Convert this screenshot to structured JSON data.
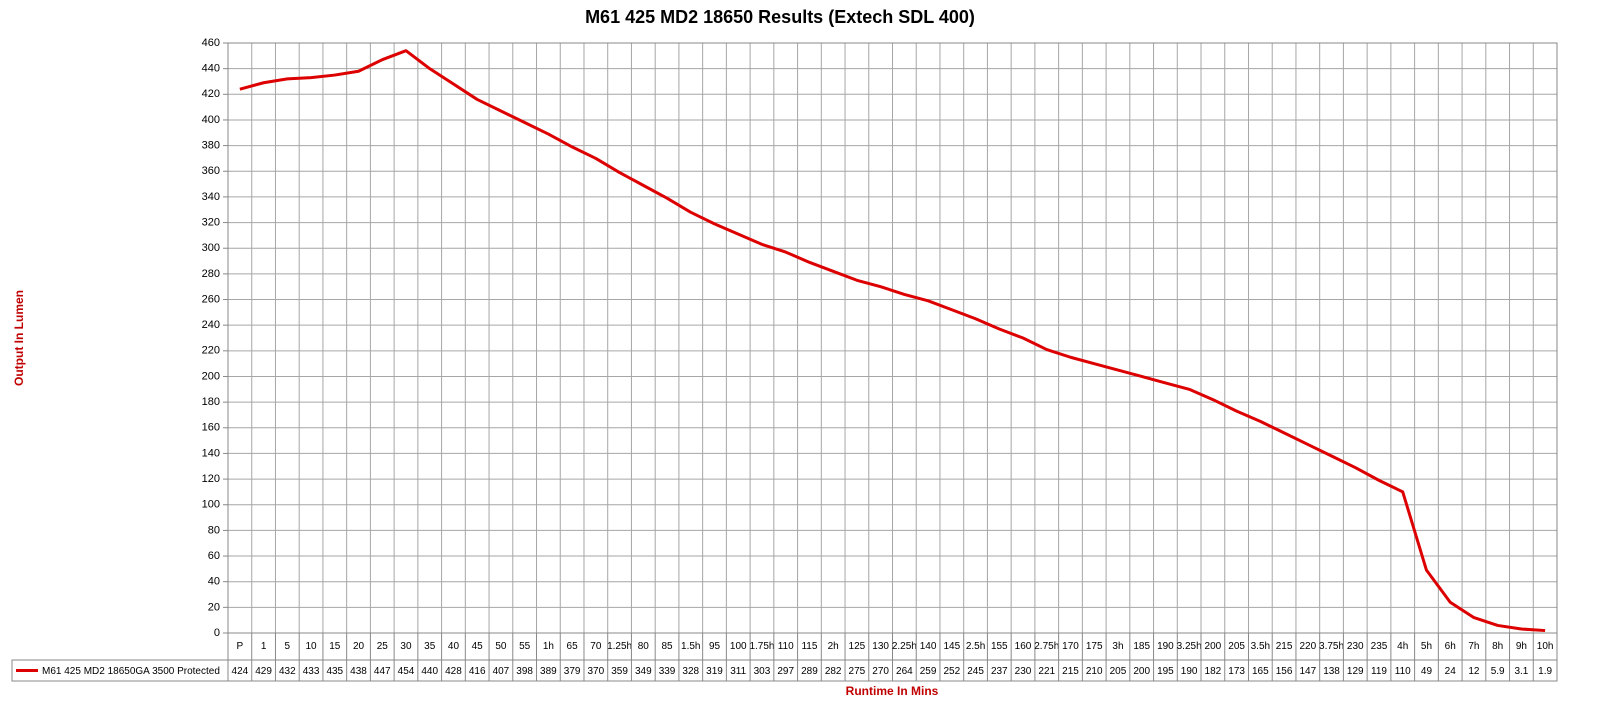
{
  "chart_data": {
    "type": "line",
    "title": "M61 425 MD2 18650 Results (Extech SDL 400)",
    "x_label": "Runtime In Mins",
    "y_label": "Output In Lumen",
    "categories": [
      "P",
      "1",
      "5",
      "10",
      "15",
      "20",
      "25",
      "30",
      "35",
      "40",
      "45",
      "50",
      "55",
      "1h",
      "65",
      "70",
      "1.25h",
      "80",
      "85",
      "1.5h",
      "95",
      "100",
      "1.75h",
      "110",
      "115",
      "2h",
      "125",
      "130",
      "2.25h",
      "140",
      "145",
      "2.5h",
      "155",
      "160",
      "2.75h",
      "170",
      "175",
      "3h",
      "185",
      "190",
      "3.25h",
      "200",
      "205",
      "3.5h",
      "215",
      "220",
      "3.75h",
      "230",
      "235",
      "4h",
      "5h",
      "6h",
      "7h",
      "8h",
      "9h",
      "10h"
    ],
    "series": [
      {
        "name": "M61 425 MD2 18650GA 3500 Protected",
        "color": "#dd0000",
        "values": [
          424,
          429,
          432,
          433,
          435,
          438,
          447,
          454,
          440,
          428,
          416,
          407,
          398,
          389,
          379,
          370,
          359,
          349,
          339,
          328,
          319,
          311,
          303,
          297,
          289,
          282,
          275,
          270,
          264,
          259,
          252,
          245,
          237,
          230,
          221,
          215,
          210,
          205,
          200,
          195,
          190,
          182,
          173,
          165,
          156,
          147,
          138,
          129,
          119,
          110,
          49,
          24,
          12,
          5.9,
          3.1,
          1.9
        ]
      }
    ],
    "ylim": [
      0,
      460
    ],
    "yticks": [
      0,
      20,
      40,
      60,
      80,
      100,
      120,
      140,
      160,
      180,
      200,
      220,
      240,
      260,
      280,
      300,
      320,
      340,
      360,
      380,
      400,
      420,
      440,
      460
    ],
    "grid": true
  }
}
